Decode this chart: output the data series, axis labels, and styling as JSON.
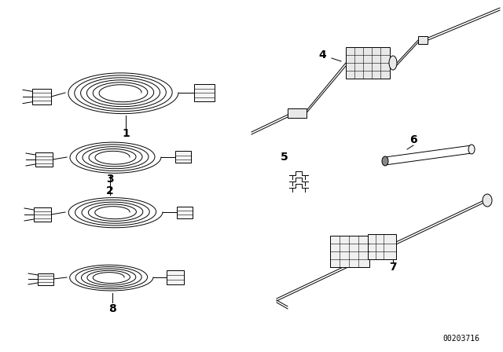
{
  "bg_color": "#ffffff",
  "line_color": "#000000",
  "fig_width": 6.4,
  "fig_height": 4.48,
  "dpi": 100,
  "catalog_number": "00203716"
}
